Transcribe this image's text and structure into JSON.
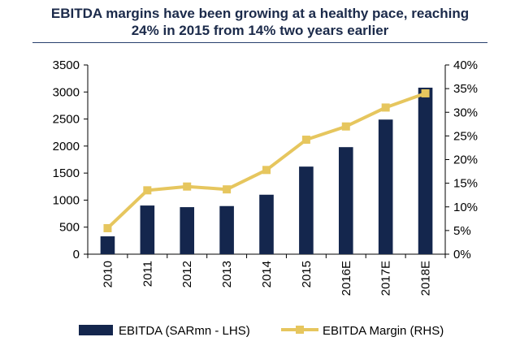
{
  "title": {
    "line1": "EBITDA margins have been growing at a healthy pace, reaching",
    "line2": "24% in 2015 from 14% two years earlier"
  },
  "colors": {
    "bars": "#14264d",
    "line": "#e6c65e",
    "title": "#1b2a4a",
    "rule": "#27406e"
  },
  "chart_data": {
    "type": "bar",
    "title": "EBITDA margins have been growing at a healthy pace, reaching 24% in 2015 from 14% two years earlier",
    "categories": [
      "2010",
      "2011",
      "2012",
      "2013",
      "2014",
      "2015",
      "2016E",
      "2017E",
      "2018E"
    ],
    "series": [
      {
        "name": "EBITDA (SARmn - LHS)",
        "type": "bar",
        "axis": "left",
        "values": [
          330,
          900,
          870,
          890,
          1100,
          1620,
          1980,
          2490,
          3080
        ]
      },
      {
        "name": "EBITDA Margin (RHS)",
        "type": "line",
        "axis": "right",
        "values": [
          5.5,
          13.5,
          14.3,
          13.7,
          17.8,
          24.2,
          27,
          31,
          34
        ]
      }
    ],
    "y_left": {
      "min": 0,
      "max": 3500,
      "step": 500,
      "ticks": [
        "0",
        "500",
        "1000",
        "1500",
        "2000",
        "2500",
        "3000",
        "3500"
      ]
    },
    "y_right": {
      "min": 0,
      "max": 40,
      "step": 5,
      "ticks": [
        "0%",
        "5%",
        "10%",
        "15%",
        "20%",
        "25%",
        "30%",
        "35%",
        "40%"
      ]
    },
    "grid": false,
    "legend": "bottom"
  }
}
